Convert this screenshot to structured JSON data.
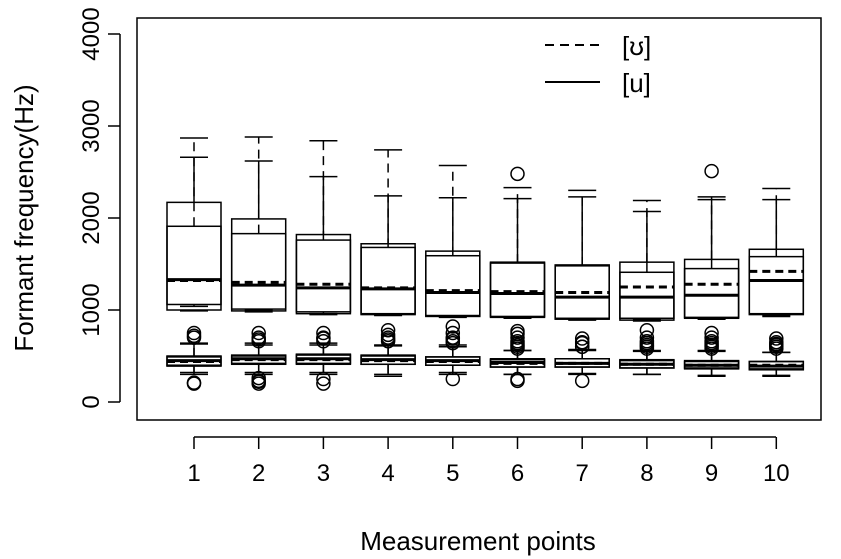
{
  "chart_data": {
    "type": "box",
    "title": "",
    "xlabel": "Measurement points",
    "ylabel": "Formant frequency(Hz)",
    "ylim": [
      -150,
      4150
    ],
    "y_ticks": [
      0,
      1000,
      2000,
      3000,
      4000
    ],
    "categories": [
      "1",
      "2",
      "3",
      "4",
      "5",
      "6",
      "7",
      "8",
      "9",
      "10"
    ],
    "legend": {
      "position": "top-right",
      "entries": [
        {
          "label": "[ʊ]",
          "linestyle": "dashed"
        },
        {
          "label": "[u]",
          "linestyle": "solid"
        }
      ]
    },
    "series": [
      {
        "name": "[ʊ]",
        "linestyle": "dashed",
        "boxes": [
          {
            "group": "F2",
            "x": "1",
            "whisker_low": 1040,
            "q1": 1060,
            "median": 1320,
            "q3": 1910,
            "whisker_high": 2870,
            "outliers": []
          },
          {
            "group": "F2",
            "x": "2",
            "whisker_low": 1000,
            "q1": 1010,
            "median": 1300,
            "q3": 1830,
            "whisker_high": 2880,
            "outliers": []
          },
          {
            "group": "F2",
            "x": "3",
            "whisker_low": 960,
            "q1": 980,
            "median": 1280,
            "q3": 1760,
            "whisker_high": 2840,
            "outliers": []
          },
          {
            "group": "F2",
            "x": "4",
            "whisker_low": 950,
            "q1": 960,
            "median": 1240,
            "q3": 1680,
            "whisker_high": 2740,
            "outliers": []
          },
          {
            "group": "F2",
            "x": "5",
            "whisker_low": 930,
            "q1": 940,
            "median": 1210,
            "q3": 1590,
            "whisker_high": 2570,
            "outliers": []
          },
          {
            "group": "F2",
            "x": "6",
            "whisker_low": 920,
            "q1": 930,
            "median": 1200,
            "q3": 1510,
            "whisker_high": 2330,
            "outliers": []
          },
          {
            "group": "F2",
            "x": "7",
            "whisker_low": 900,
            "q1": 910,
            "median": 1190,
            "q3": 1480,
            "whisker_high": 2300,
            "outliers": []
          },
          {
            "group": "F2",
            "x": "8",
            "whisker_low": 900,
            "q1": 910,
            "median": 1250,
            "q3": 1520,
            "whisker_high": 2190,
            "outliers": []
          },
          {
            "group": "F2",
            "x": "9",
            "whisker_low": 910,
            "q1": 920,
            "median": 1280,
            "q3": 1550,
            "whisker_high": 2230,
            "outliers": [
              2510
            ]
          },
          {
            "group": "F2",
            "x": "10",
            "whisker_low": 940,
            "q1": 960,
            "median": 1420,
            "q3": 1660,
            "whisker_high": 2320,
            "outliers": []
          },
          {
            "group": "F1",
            "x": "1",
            "whisker_low": 300,
            "q1": 390,
            "median": 440,
            "q3": 490,
            "whisker_high": 640,
            "outliers": [
              210,
              720,
              750
            ]
          },
          {
            "group": "F1",
            "x": "2",
            "whisker_low": 300,
            "q1": 410,
            "median": 460,
            "q3": 500,
            "whisker_high": 640,
            "outliers": [
              200,
              230,
              260,
              660,
              700,
              750
            ]
          },
          {
            "group": "F1",
            "x": "3",
            "whisker_low": 300,
            "q1": 410,
            "median": 460,
            "q3": 510,
            "whisker_high": 640,
            "outliers": [
              200,
              250,
              660,
              700,
              750
            ]
          },
          {
            "group": "F1",
            "x": "4",
            "whisker_low": 280,
            "q1": 410,
            "median": 450,
            "q3": 500,
            "whisker_high": 620,
            "outliers": [
              660,
              700,
              730,
              780
            ]
          },
          {
            "group": "F1",
            "x": "5",
            "whisker_low": 300,
            "q1": 400,
            "median": 440,
            "q3": 490,
            "whisker_high": 620,
            "outliers": [
              250,
              640,
              690,
              750,
              820
            ]
          },
          {
            "group": "F1",
            "x": "6",
            "whisker_low": 300,
            "q1": 380,
            "median": 420,
            "q3": 460,
            "whisker_high": 560,
            "outliers": [
              230,
              250,
              580,
              620,
              660,
              700,
              740,
              770
            ]
          },
          {
            "group": "F1",
            "x": "7",
            "whisker_low": 300,
            "q1": 380,
            "median": 420,
            "q3": 470,
            "whisker_high": 570,
            "outliers": [
              230,
              600,
              650,
              690
            ]
          },
          {
            "group": "F1",
            "x": "8",
            "whisker_low": 300,
            "q1": 370,
            "median": 410,
            "q3": 450,
            "whisker_high": 560,
            "outliers": [
              580,
              620,
              660,
              700,
              780
            ]
          },
          {
            "group": "F1",
            "x": "9",
            "whisker_low": 280,
            "q1": 370,
            "median": 400,
            "q3": 440,
            "whisker_high": 560,
            "outliers": [
              580,
              620,
              660,
              700,
              750
            ]
          },
          {
            "group": "F1",
            "x": "10",
            "whisker_low": 280,
            "q1": 360,
            "median": 400,
            "q3": 440,
            "whisker_high": 540,
            "outliers": [
              580,
              620,
              650,
              690
            ]
          }
        ]
      },
      {
        "name": "[u]",
        "linestyle": "solid",
        "boxes": [
          {
            "group": "F2",
            "x": "1",
            "whisker_low": 990,
            "q1": 1000,
            "median": 1330,
            "q3": 2170,
            "whisker_high": 2660,
            "outliers": []
          },
          {
            "group": "F2",
            "x": "2",
            "whisker_low": 980,
            "q1": 990,
            "median": 1270,
            "q3": 1990,
            "whisker_high": 2620,
            "outliers": []
          },
          {
            "group": "F2",
            "x": "3",
            "whisker_low": 950,
            "q1": 960,
            "median": 1240,
            "q3": 1820,
            "whisker_high": 2450,
            "outliers": []
          },
          {
            "group": "F2",
            "x": "4",
            "whisker_low": 940,
            "q1": 950,
            "median": 1230,
            "q3": 1720,
            "whisker_high": 2240,
            "outliers": []
          },
          {
            "group": "F2",
            "x": "5",
            "whisker_low": 920,
            "q1": 930,
            "median": 1190,
            "q3": 1640,
            "whisker_high": 2220,
            "outliers": []
          },
          {
            "group": "F2",
            "x": "6",
            "whisker_low": 910,
            "q1": 920,
            "median": 1180,
            "q3": 1520,
            "whisker_high": 2210,
            "outliers": [
              2480
            ]
          },
          {
            "group": "F2",
            "x": "7",
            "whisker_low": 890,
            "q1": 900,
            "median": 1140,
            "q3": 1490,
            "whisker_high": 2230,
            "outliers": []
          },
          {
            "group": "F2",
            "x": "8",
            "whisker_low": 880,
            "q1": 890,
            "median": 1140,
            "q3": 1410,
            "whisker_high": 2070,
            "outliers": []
          },
          {
            "group": "F2",
            "x": "9",
            "whisker_low": 900,
            "q1": 910,
            "median": 1160,
            "q3": 1450,
            "whisker_high": 2200,
            "outliers": []
          },
          {
            "group": "F2",
            "x": "10",
            "whisker_low": 930,
            "q1": 950,
            "median": 1320,
            "q3": 1580,
            "whisker_high": 2200,
            "outliers": []
          },
          {
            "group": "F1",
            "x": "1",
            "whisker_low": 320,
            "q1": 400,
            "median": 450,
            "q3": 500,
            "whisker_high": 630,
            "outliers": [
              200,
              700
            ]
          },
          {
            "group": "F1",
            "x": "2",
            "whisker_low": 320,
            "q1": 420,
            "median": 470,
            "q3": 510,
            "whisker_high": 620,
            "outliers": [
              220,
              680
            ]
          },
          {
            "group": "F1",
            "x": "3",
            "whisker_low": 320,
            "q1": 420,
            "median": 470,
            "q3": 520,
            "whisker_high": 620,
            "outliers": [
              690
            ]
          },
          {
            "group": "F1",
            "x": "4",
            "whisker_low": 300,
            "q1": 410,
            "median": 460,
            "q3": 510,
            "whisker_high": 610,
            "outliers": [
              680
            ]
          },
          {
            "group": "F1",
            "x": "5",
            "whisker_low": 320,
            "q1": 400,
            "median": 450,
            "q3": 490,
            "whisker_high": 600,
            "outliers": [
              660,
              700
            ]
          },
          {
            "group": "F1",
            "x": "6",
            "whisker_low": 300,
            "q1": 380,
            "median": 430,
            "q3": 470,
            "whisker_high": 560,
            "outliers": [
              600,
              640
            ]
          },
          {
            "group": "F1",
            "x": "7",
            "whisker_low": 310,
            "q1": 380,
            "median": 420,
            "q3": 470,
            "whisker_high": 560,
            "outliers": [
              600,
              640
            ]
          },
          {
            "group": "F1",
            "x": "8",
            "whisker_low": 300,
            "q1": 370,
            "median": 410,
            "q3": 460,
            "whisker_high": 550,
            "outliers": [
              600,
              640
            ]
          },
          {
            "group": "F1",
            "x": "9",
            "whisker_low": 290,
            "q1": 360,
            "median": 400,
            "q3": 450,
            "whisker_high": 550,
            "outliers": [
              600,
              640
            ]
          },
          {
            "group": "F1",
            "x": "10",
            "whisker_low": 290,
            "q1": 350,
            "median": 390,
            "q3": 440,
            "whisker_high": 540,
            "outliers": [
              600,
              630
            ]
          }
        ]
      }
    ]
  }
}
